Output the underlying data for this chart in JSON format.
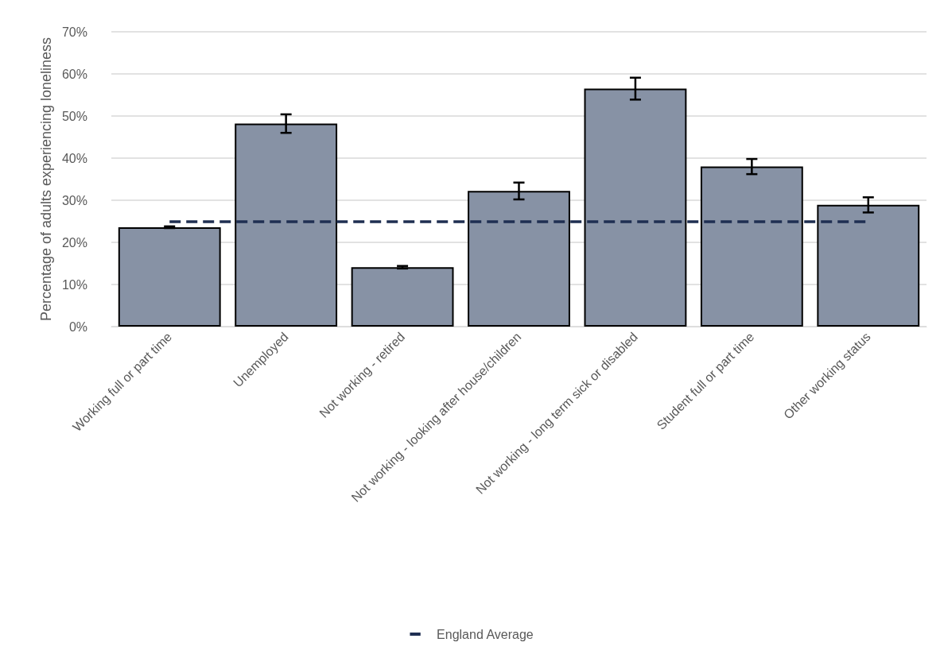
{
  "chart_data": {
    "type": "bar",
    "ylabel": "Percentage of adults experiencing loneliness",
    "categories": [
      "Working full or part time",
      "Unemployed",
      "Not working - retired",
      "Not working - looking after house/children",
      "Not working - long term sick or disabled",
      "Student full or part time",
      "Other working status"
    ],
    "series": [
      {
        "color": "#8792a5",
        "values": [
          23.6,
          48.2,
          14.1,
          32.2,
          56.5,
          38.0,
          28.9
        ],
        "errors": [
          0.2,
          2.2,
          0.3,
          2.0,
          2.6,
          1.8,
          1.8
        ]
      },
      {
        "type": "line",
        "name": "England Average",
        "color": "#1f2f52",
        "values": [
          24.9,
          24.9,
          24.9,
          24.9,
          24.9,
          24.9,
          24.9
        ],
        "line_style": "dashed",
        "marker": "none"
      }
    ],
    "ylim": [
      0,
      70
    ],
    "yticks": [
      {
        "value": 0,
        "label": "0%"
      },
      {
        "value": 10,
        "label": "10%"
      },
      {
        "value": 20,
        "label": "20%"
      },
      {
        "value": 30,
        "label": "30%"
      },
      {
        "value": 40,
        "label": "40%"
      },
      {
        "value": 50,
        "label": "50%"
      },
      {
        "value": 60,
        "label": "60%"
      },
      {
        "value": 70,
        "label": "70%"
      }
    ],
    "grid": "y",
    "legend": "bottom"
  }
}
